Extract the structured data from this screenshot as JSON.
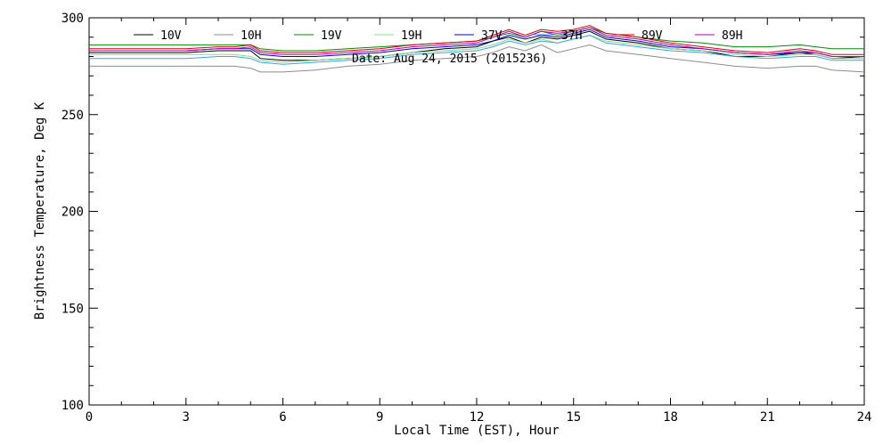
{
  "chart_data": {
    "type": "line",
    "title": "",
    "annotation": "Date: Aug 24, 2015 (2015236)",
    "xlabel": "Local Time (EST), Hour",
    "ylabel": "Brightness Temperature, Deg K",
    "xlim": [
      0,
      24
    ],
    "ylim": [
      100,
      300
    ],
    "xticks": [
      0,
      3,
      6,
      9,
      12,
      15,
      18,
      21,
      24
    ],
    "yticks": [
      100,
      150,
      200,
      250,
      300
    ],
    "grid": false,
    "legend_position": "top",
    "x": [
      0,
      1,
      2,
      3,
      4,
      4.5,
      5,
      5.3,
      6,
      7,
      8,
      9,
      10,
      11,
      12,
      12.5,
      13,
      13.5,
      14,
      14.5,
      15,
      15.5,
      16,
      17,
      18,
      19,
      20,
      21,
      22,
      22.5,
      23,
      24
    ],
    "series": [
      {
        "name": "10V",
        "color": "#000000",
        "values": [
          282,
          282,
          282,
          282,
          283,
          283,
          283,
          279,
          278,
          278,
          279,
          280,
          282,
          284,
          285,
          288,
          290,
          287,
          290,
          289,
          291,
          293,
          289,
          287,
          284,
          283,
          280,
          280,
          282,
          281,
          279,
          280
        ]
      },
      {
        "name": "10H",
        "color": "#8c8c8c",
        "values": [
          275,
          275,
          275,
          275,
          275,
          275,
          274,
          272,
          272,
          273,
          275,
          276,
          278,
          279,
          280,
          282,
          285,
          283,
          286,
          282,
          284,
          286,
          283,
          281,
          279,
          277,
          275,
          274,
          275,
          275,
          273,
          272
        ]
      },
      {
        "name": "19V",
        "color": "#008c00",
        "values": [
          286,
          286,
          286,
          286,
          286,
          286,
          286,
          284,
          283,
          283,
          284,
          285,
          286,
          287,
          288,
          290,
          292,
          290,
          293,
          291,
          293,
          295,
          292,
          290,
          288,
          287,
          285,
          285,
          286,
          285,
          284,
          284
        ]
      },
      {
        "name": "19H",
        "color": "#7fe07f",
        "values": [
          281,
          281,
          281,
          281,
          281,
          281,
          280,
          278,
          277,
          278,
          279,
          280,
          282,
          283,
          284,
          286,
          289,
          287,
          289,
          287,
          289,
          291,
          288,
          286,
          284,
          283,
          281,
          280,
          281,
          281,
          279,
          279
        ]
      },
      {
        "name": "37V",
        "color": "#0000c8",
        "values": [
          283,
          283,
          283,
          283,
          284,
          284,
          284,
          281,
          280,
          280,
          281,
          282,
          284,
          285,
          286,
          288,
          291,
          289,
          291,
          290,
          292,
          294,
          290,
          288,
          285,
          284,
          282,
          281,
          282,
          282,
          280,
          280
        ]
      },
      {
        "name": "37H",
        "color": "#3aa0ff",
        "values": [
          279,
          279,
          279,
          279,
          280,
          280,
          279,
          277,
          276,
          277,
          278,
          279,
          281,
          282,
          283,
          285,
          288,
          286,
          288,
          287,
          289,
          291,
          287,
          285,
          283,
          282,
          280,
          279,
          280,
          280,
          278,
          278
        ]
      },
      {
        "name": "89V",
        "color": "#e00000",
        "values": [
          284,
          284,
          284,
          284,
          285,
          285,
          286,
          283,
          282,
          282,
          283,
          284,
          286,
          287,
          288,
          291,
          294,
          291,
          294,
          293,
          294,
          296,
          292,
          290,
          287,
          285,
          283,
          282,
          284,
          283,
          281,
          281
        ]
      },
      {
        "name": "89H",
        "color": "#b400b4",
        "values": [
          283,
          283,
          283,
          283,
          284,
          284,
          285,
          282,
          281,
          281,
          282,
          283,
          285,
          286,
          287,
          290,
          293,
          290,
          293,
          292,
          293,
          295,
          291,
          289,
          286,
          284,
          282,
          281,
          283,
          282,
          280,
          280
        ]
      }
    ]
  }
}
